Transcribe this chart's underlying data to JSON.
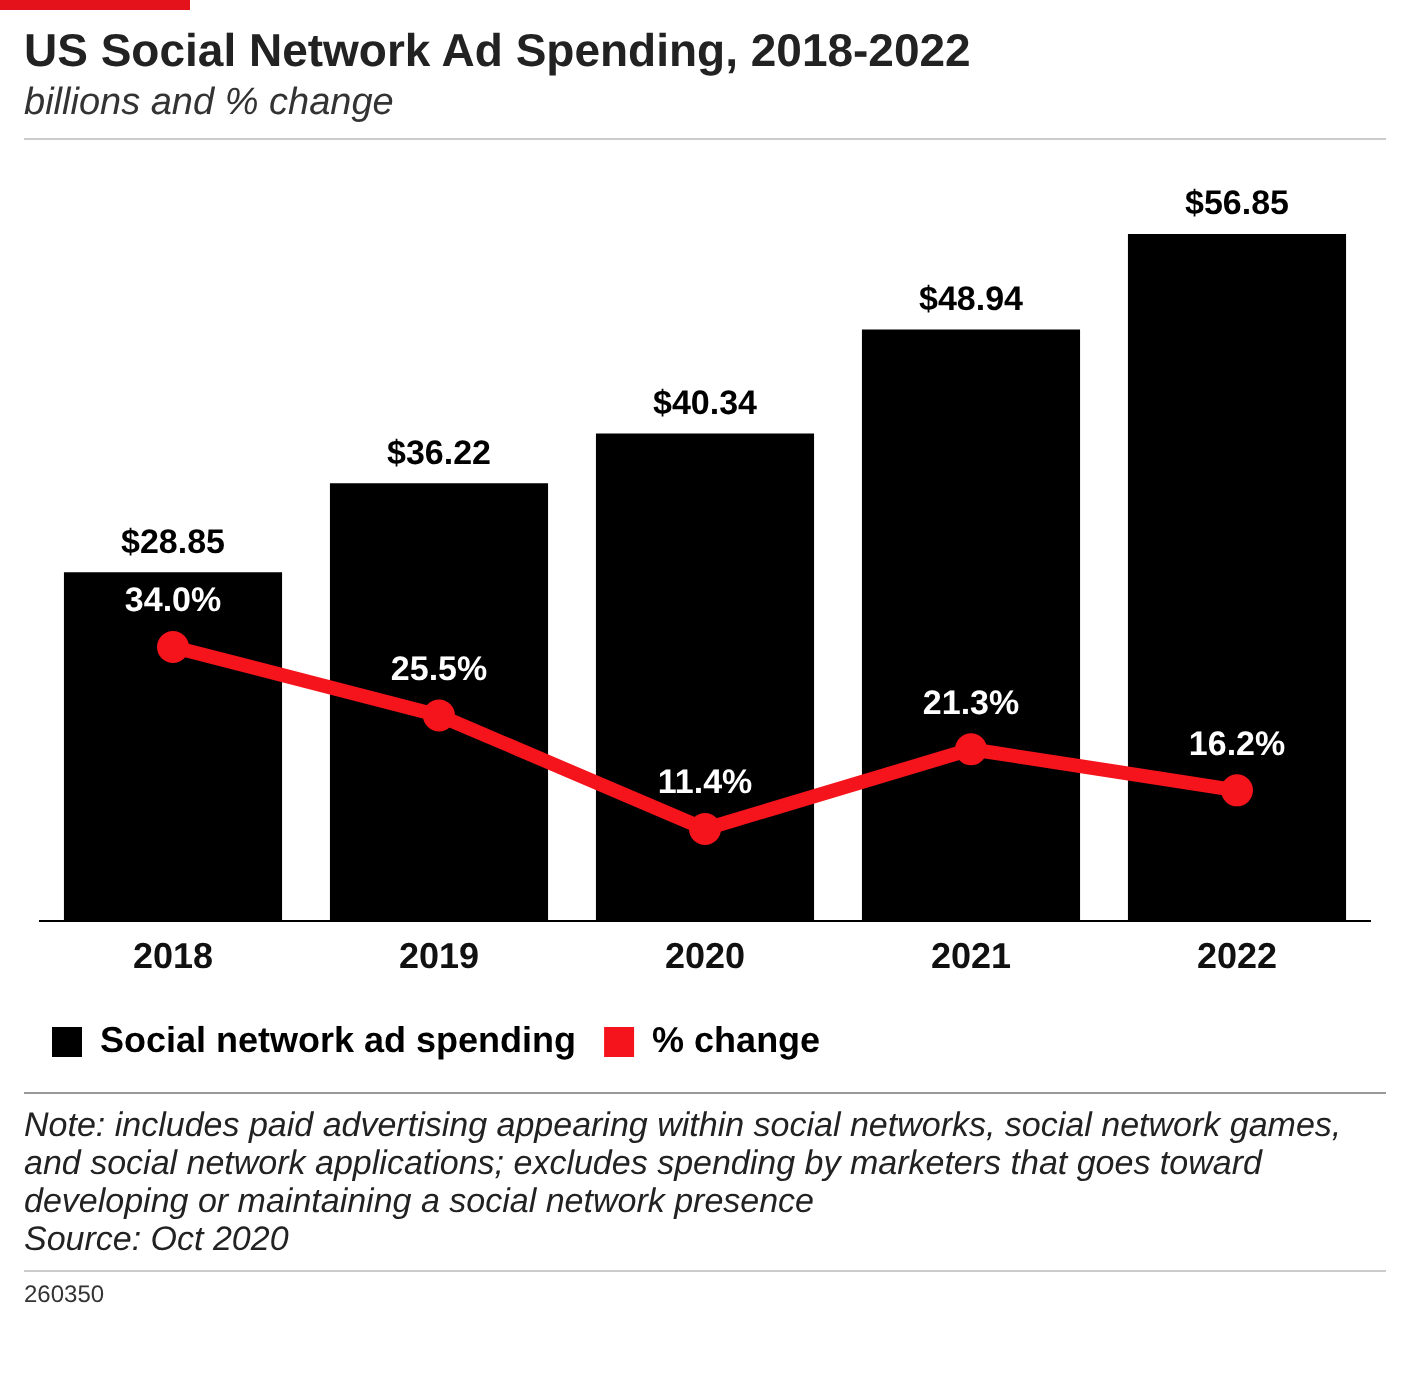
{
  "chart_data": {
    "type": "bar",
    "title": "US Social Network Ad Spending, 2018-2022",
    "subtitle": "billions and % change",
    "categories": [
      "2018",
      "2019",
      "2020",
      "2021",
      "2022"
    ],
    "series": [
      {
        "name": "Social network ad spending",
        "color": "#000000",
        "values": [
          28.85,
          36.22,
          40.34,
          48.94,
          56.85
        ],
        "value_labels": [
          "$28.85",
          "$36.22",
          "$40.34",
          "$48.94",
          "$56.85"
        ]
      },
      {
        "name": "% change",
        "type": "line",
        "axis": "y2",
        "color": "#f5141b",
        "values": [
          34.0,
          25.5,
          11.4,
          21.3,
          16.2
        ],
        "value_labels": [
          "34.0%",
          "25.5%",
          "11.4%",
          "21.3%",
          "16.2%"
        ]
      }
    ],
    "legend": "bottom left",
    "marker": "circle",
    "grid": false,
    "tick_labels": "x",
    "annotations": [
      "Note: includes paid advertising appearing within social networks, social network games, and social network applications; excludes spending by marketers that goes toward developing or maintaining a social network presence",
      "Source: Oct 2020",
      "260350"
    ]
  }
}
